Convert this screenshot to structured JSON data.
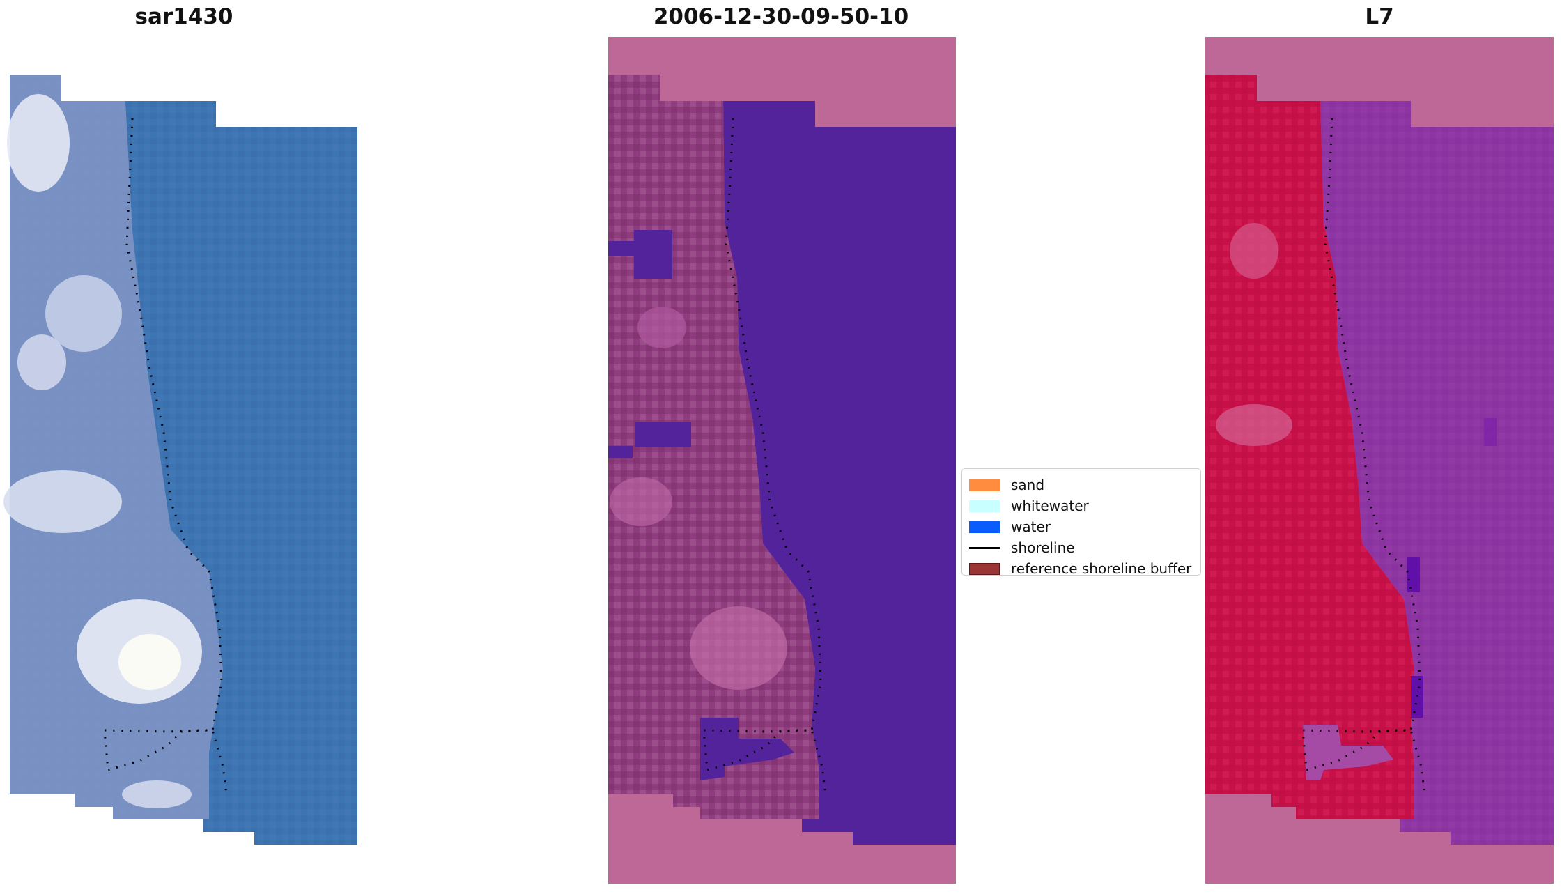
{
  "panels": [
    {
      "title": "sar1430"
    },
    {
      "title": "2006-12-30-09-50-10"
    },
    {
      "title": "L7"
    }
  ],
  "legend": {
    "items": [
      {
        "label": "sand",
        "color": "#ff8c3f",
        "kind": "patch"
      },
      {
        "label": "whitewater",
        "color": "#c8ffff",
        "kind": "patch"
      },
      {
        "label": "water",
        "color": "#0a5cff",
        "kind": "patch"
      },
      {
        "label": "shoreline",
        "color": "#000000",
        "kind": "line"
      },
      {
        "label": "reference shoreline buffer",
        "color": "#9b3535",
        "kind": "patch",
        "edge": "#5a1a1a"
      }
    ]
  },
  "colors": {
    "rgb_water": "#3d74b2",
    "classified_water": "#52239a",
    "classified_nodata": "#bd6896",
    "ndwi_land": "#c81048",
    "ndwi_water": "#8d35a2",
    "ndwi_nodata": "#bd6896"
  }
}
